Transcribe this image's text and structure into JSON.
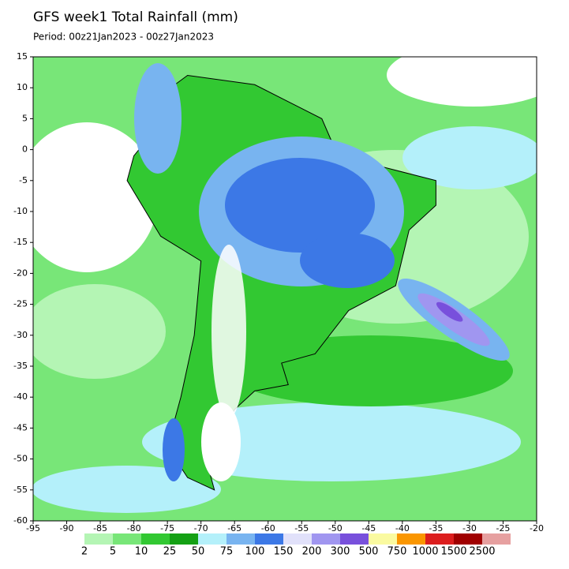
{
  "title": "GFS week1 Total Rainfall (mm)",
  "subtitle": "Period: 00z21Jan2023 - 00z27Jan2023",
  "axes": {
    "xticks": [
      -95,
      -90,
      -85,
      -80,
      -75,
      -70,
      -65,
      -60,
      -55,
      -50,
      -45,
      -40,
      -35,
      -30,
      -25,
      -20
    ],
    "yticks": [
      15,
      10,
      5,
      0,
      -5,
      -10,
      -15,
      -20,
      -25,
      -30,
      -35,
      -40,
      -45,
      -50,
      -55,
      -60
    ]
  },
  "colorbar": {
    "labels": [
      2,
      5,
      10,
      25,
      50,
      75,
      100,
      150,
      200,
      300,
      500,
      750,
      1000,
      1500,
      2500
    ],
    "colors": [
      "#b4f5b4",
      "#78e678",
      "#32c832",
      "#14a014",
      "#b4f0fa",
      "#78b4f0",
      "#3c78e6",
      "#e1e1fa",
      "#a096f0",
      "#7850dc",
      "#fafaa0",
      "#fa9600",
      "#dc1e1e",
      "#a00000",
      "#e6a0a0"
    ]
  }
}
